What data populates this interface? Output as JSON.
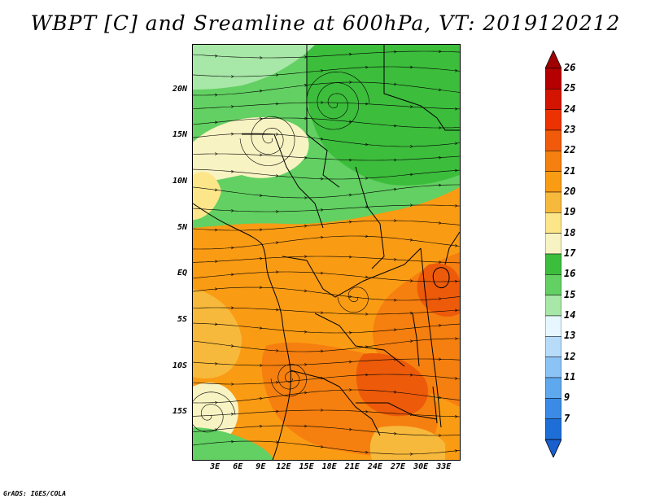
{
  "title": "WBPT [C] and Sreamline at 600hPa, VT: 2019120212",
  "credit": "GrADS: IGES/COLA",
  "lat_labels": [
    "20N",
    "15N",
    "10N",
    "5N",
    "EQ",
    "5S",
    "10S",
    "15S"
  ],
  "lat_values": [
    20,
    15,
    10,
    5,
    0,
    -5,
    -10,
    -15
  ],
  "lon_labels": [
    "3E",
    "6E",
    "9E",
    "12E",
    "15E",
    "18E",
    "21E",
    "24E",
    "27E",
    "30E",
    "33E"
  ],
  "lon_values": [
    3,
    6,
    9,
    12,
    15,
    18,
    21,
    24,
    27,
    30,
    33
  ],
  "map_extent": {
    "lon_min": 0,
    "lon_max": 35,
    "lat_min": -20,
    "lat_max": 25
  },
  "colorbar": {
    "labels": [
      "26",
      "25",
      "24",
      "23",
      "22",
      "21",
      "20",
      "19",
      "18",
      "17",
      "16",
      "15",
      "14",
      "13",
      "12",
      "11",
      "9",
      "7"
    ],
    "colors": [
      "#b40000",
      "#d21400",
      "#ec3200",
      "#f05a0a",
      "#f57f0f",
      "#fa9b14",
      "#f7b93c",
      "#fde68a",
      "#f8f3c3",
      "#3cbd3c",
      "#62d062",
      "#a7e7a7",
      "#e6f7ff",
      "#b6dcfa",
      "#8cc3f5",
      "#5ea8ee",
      "#3a8ae6",
      "#1e6ed8"
    ],
    "top_color": "#a00000",
    "bottom_color": "#1a5fd0"
  },
  "colors": {
    "green_dark": "#3cbd3c",
    "green_mid": "#62d062",
    "green_light": "#a7e7a7",
    "yellow_pale": "#f8f3c3",
    "yellow": "#fde68a",
    "orange_light": "#f7b93c",
    "orange": "#fa9b14",
    "orange_dark": "#f57f0f",
    "red_orange": "#ec5a0a"
  }
}
